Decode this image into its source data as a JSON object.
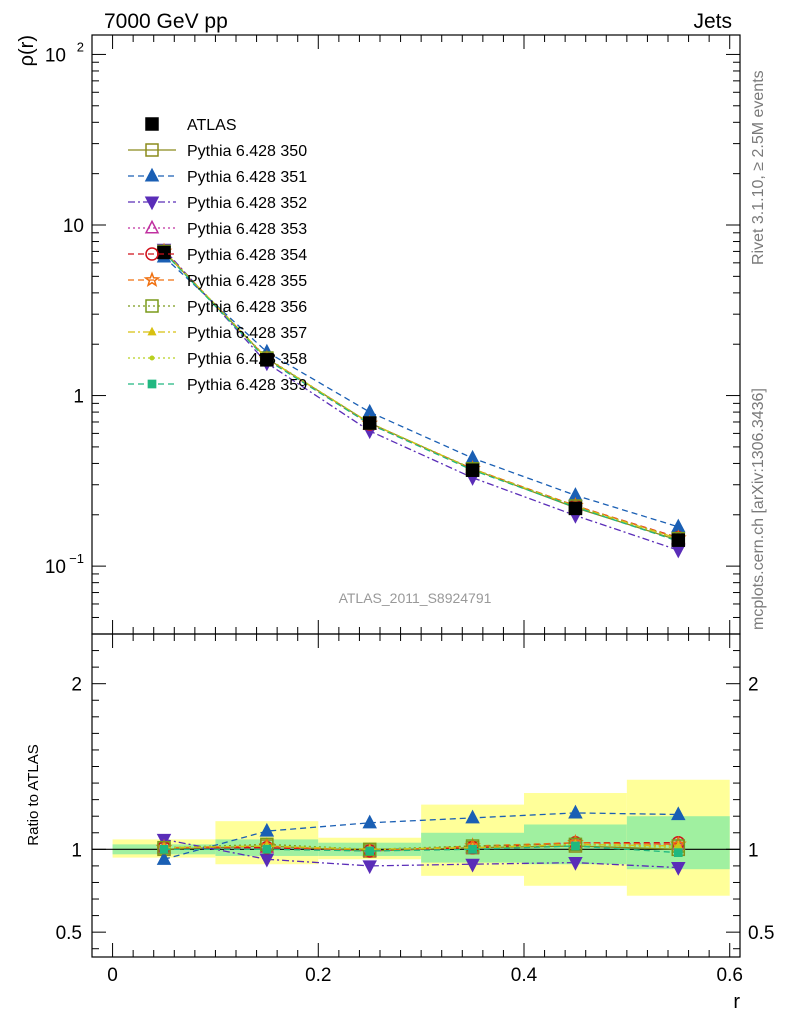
{
  "header": {
    "left": "7000 GeV pp",
    "right": "Jets"
  },
  "side_labels": {
    "rivet": "Rivet 3.1.10, ≥ 2.5M events",
    "mcplots": "mcplots.cern.ch [arXiv:1306.3436]"
  },
  "analysis_label": "ATLAS_2011_S8924791",
  "chart_data": [
    {
      "type": "line",
      "panel": "main",
      "title": "",
      "xlabel": "",
      "ylabel": "ρ(r)",
      "yscale": "log",
      "ylim": [
        0.04,
        130
      ],
      "xlim": [
        -0.02,
        0.61
      ],
      "x": [
        0.05,
        0.15,
        0.25,
        0.35,
        0.45,
        0.55
      ],
      "yticks": [
        {
          "value": 0.1,
          "base": "10",
          "exp": "−1"
        },
        {
          "value": 1,
          "base": "1",
          "exp": ""
        },
        {
          "value": 10,
          "base": "10",
          "exp": ""
        },
        {
          "value": 100,
          "base": "10",
          "exp": "2"
        }
      ],
      "legend_position": "top-left",
      "series": [
        {
          "name": "ATLAS",
          "color": "#000000",
          "marker": "square-filled",
          "line": "none",
          "values": [
            6.9,
            1.62,
            0.69,
            0.365,
            0.218,
            0.142
          ]
        },
        {
          "name": "Pythia 6.428 350",
          "color": "#8b8b1c",
          "marker": "square-open",
          "line": "solid",
          "values": [
            6.95,
            1.65,
            0.69,
            0.37,
            0.22,
            0.142
          ]
        },
        {
          "name": "Pythia 6.428 351",
          "color": "#1a5fb4",
          "marker": "triangle-up-filled",
          "line": "dashed",
          "values": [
            6.5,
            1.8,
            0.8,
            0.43,
            0.26,
            0.17
          ]
        },
        {
          "name": "Pythia 6.428 352",
          "color": "#5a2db8",
          "marker": "triangle-down-filled",
          "line": "dashdot",
          "values": [
            7.2,
            1.55,
            0.62,
            0.33,
            0.198,
            0.124
          ]
        },
        {
          "name": "Pythia 6.428 353",
          "color": "#c030a0",
          "marker": "triangle-up-open",
          "line": "dotted",
          "values": [
            7.0,
            1.64,
            0.68,
            0.37,
            0.225,
            0.146
          ]
        },
        {
          "name": "Pythia 6.428 354",
          "color": "#d0101a",
          "marker": "circle-open",
          "line": "dashed",
          "values": [
            7.0,
            1.64,
            0.68,
            0.37,
            0.226,
            0.147
          ]
        },
        {
          "name": "Pythia 6.428 355",
          "color": "#f07010",
          "marker": "star-open",
          "line": "dashed",
          "values": [
            7.0,
            1.65,
            0.685,
            0.372,
            0.226,
            0.146
          ]
        },
        {
          "name": "Pythia 6.428 356",
          "color": "#7a9a1a",
          "marker": "square-open",
          "line": "dotted",
          "values": [
            7.0,
            1.66,
            0.69,
            0.372,
            0.225,
            0.145
          ]
        },
        {
          "name": "Pythia 6.428 357",
          "color": "#d8c010",
          "marker": "triangle-up-small",
          "line": "dashdot",
          "values": [
            7.0,
            1.65,
            0.69,
            0.37,
            0.224,
            0.145
          ]
        },
        {
          "name": "Pythia 6.428 358",
          "color": "#b8d020",
          "marker": "dot",
          "line": "dotted",
          "values": [
            7.0,
            1.65,
            0.69,
            0.37,
            0.224,
            0.144
          ]
        },
        {
          "name": "Pythia 6.428 359",
          "color": "#20b880",
          "marker": "square-filled-small",
          "line": "dashed",
          "values": [
            6.9,
            1.62,
            0.68,
            0.365,
            0.222,
            0.14
          ]
        }
      ]
    },
    {
      "type": "line",
      "panel": "ratio",
      "title": "",
      "xlabel": "r",
      "ylabel": "Ratio to ATLAS",
      "ylim": [
        0.35,
        2.3
      ],
      "xlim": [
        -0.02,
        0.61
      ],
      "xticks": [
        0,
        0.2,
        0.4,
        0.6
      ],
      "xticklabels": [
        "0",
        "0.2",
        "0.4",
        "0.6"
      ],
      "yticks": [
        0.5,
        1,
        2
      ],
      "yticklabels": [
        "0.5",
        "1",
        "2"
      ],
      "bands": {
        "bins": [
          [
            0.0,
            0.1
          ],
          [
            0.1,
            0.2
          ],
          [
            0.2,
            0.3
          ],
          [
            0.3,
            0.4
          ],
          [
            0.4,
            0.5
          ],
          [
            0.5,
            0.6
          ]
        ],
        "inner": [
          [
            0.97,
            1.03
          ],
          [
            0.96,
            1.06
          ],
          [
            0.96,
            1.04
          ],
          [
            0.92,
            1.1
          ],
          [
            0.91,
            1.15
          ],
          [
            0.88,
            1.2
          ]
        ],
        "outer": [
          [
            0.95,
            1.06
          ],
          [
            0.91,
            1.17
          ],
          [
            0.94,
            1.07
          ],
          [
            0.84,
            1.27
          ],
          [
            0.78,
            1.34
          ],
          [
            0.72,
            1.42
          ]
        ],
        "inner_color": "#a0f0a0",
        "outer_color": "#ffff99"
      },
      "series": [
        {
          "name": "Pythia 6.428 350",
          "values": [
            1.0,
            1.02,
            0.99,
            1.01,
            1.02,
            1.0
          ]
        },
        {
          "name": "Pythia 6.428 351",
          "values": [
            0.94,
            1.11,
            1.16,
            1.19,
            1.22,
            1.21
          ]
        },
        {
          "name": "Pythia 6.428 352",
          "values": [
            1.06,
            0.94,
            0.9,
            0.91,
            0.92,
            0.89
          ]
        },
        {
          "name": "Pythia 6.428 353",
          "values": [
            1.01,
            1.01,
            0.99,
            1.01,
            1.04,
            1.03
          ]
        },
        {
          "name": "Pythia 6.428 354",
          "values": [
            1.01,
            1.01,
            0.99,
            1.01,
            1.04,
            1.04
          ]
        },
        {
          "name": "Pythia 6.428 355",
          "values": [
            1.01,
            1.02,
            0.99,
            1.02,
            1.04,
            1.03
          ]
        },
        {
          "name": "Pythia 6.428 356",
          "values": [
            1.01,
            1.03,
            1.0,
            1.02,
            1.03,
            1.02
          ]
        },
        {
          "name": "Pythia 6.428 357",
          "values": [
            1.01,
            1.02,
            1.0,
            1.01,
            1.03,
            1.02
          ]
        },
        {
          "name": "Pythia 6.428 358",
          "values": [
            1.01,
            1.02,
            1.0,
            1.01,
            1.03,
            1.01
          ]
        },
        {
          "name": "Pythia 6.428 359",
          "values": [
            1.0,
            1.0,
            0.99,
            1.0,
            1.02,
            0.98
          ]
        }
      ]
    }
  ]
}
